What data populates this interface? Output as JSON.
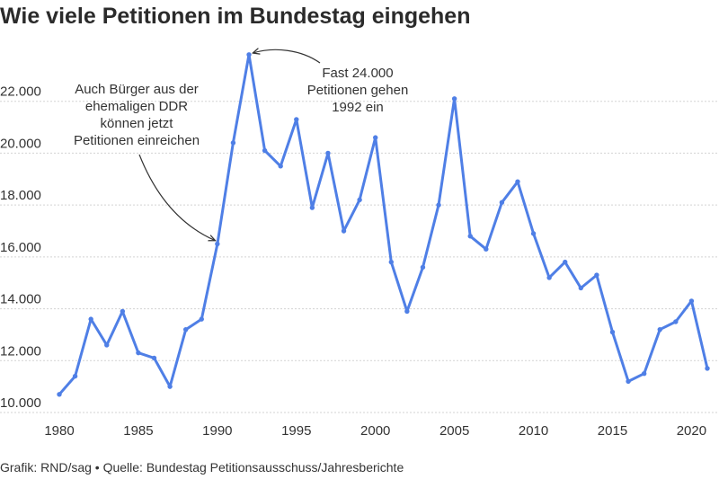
{
  "chart_data": {
    "type": "line",
    "title": "Wie viele Petitionen im Bundestag eingehen",
    "xlabel": "",
    "ylabel": "",
    "xlim": [
      1980,
      2021
    ],
    "ylim": [
      10000,
      24000
    ],
    "grid": true,
    "x_ticks": [
      1980,
      1985,
      1990,
      1995,
      2000,
      2005,
      2010,
      2015,
      2020
    ],
    "y_ticks": [
      "10.000",
      "12.000",
      "14.000",
      "16.000",
      "18.000",
      "20.000",
      "22.000"
    ],
    "y_tick_values": [
      10000,
      12000,
      14000,
      16000,
      18000,
      20000,
      22000
    ],
    "series": [
      {
        "color": "#4f7fe6",
        "x": [
          1980,
          1981,
          1982,
          1983,
          1984,
          1985,
          1986,
          1987,
          1988,
          1989,
          1990,
          1991,
          1992,
          1993,
          1994,
          1995,
          1996,
          1997,
          1998,
          1999,
          2000,
          2001,
          2002,
          2003,
          2004,
          2005,
          2006,
          2007,
          2008,
          2009,
          2010,
          2011,
          2012,
          2013,
          2014,
          2015,
          2016,
          2017,
          2018,
          2019,
          2020,
          2021
        ],
        "values": [
          10700,
          11400,
          13600,
          12600,
          13900,
          12300,
          12100,
          11000,
          13200,
          13600,
          16500,
          20400,
          23800,
          20100,
          19500,
          21300,
          17900,
          20000,
          17000,
          18200,
          20600,
          15800,
          13900,
          15600,
          18000,
          22100,
          16800,
          16300,
          18100,
          18900,
          16900,
          15200,
          15800,
          14800,
          15300,
          13100,
          11200,
          11500,
          13200,
          13500,
          14300,
          11700
        ]
      }
    ],
    "annotations": [
      {
        "lines": [
          "Auch Bürger aus der",
          "ehemaligen DDR",
          "können jetzt",
          "Petitionen einreichen"
        ],
        "target_x": 1990,
        "target_y": 16500
      },
      {
        "lines": [
          "Fast 24.000",
          "Petitionen gehen",
          "1992 ein"
        ],
        "target_x": 1992,
        "target_y": 23800
      }
    ]
  },
  "source": "Grafik: RND/sag • Quelle: Bundestag Petitionsausschuss/Jahresberichte"
}
